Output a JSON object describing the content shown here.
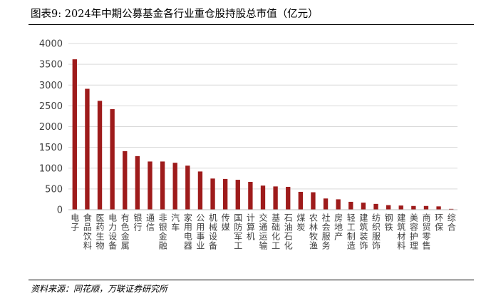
{
  "header": {
    "title": "图表9:  2024年中期公募基金各行业重仓股持股总市值（亿元）"
  },
  "footer": {
    "source": "资料来源：同花顺，万联证券研究所"
  },
  "chart_data": {
    "type": "bar",
    "title": "2024年中期公募基金各行业重仓股持股总市值（亿元）",
    "xlabel": "",
    "ylabel": "",
    "ylim": [
      0,
      4000
    ],
    "yticks": [
      0,
      500,
      1000,
      1500,
      2000,
      2500,
      3000,
      3500,
      4000
    ],
    "grid": true,
    "legend": "none",
    "bar_color": "#9e1b1b",
    "grid_color": "#d9d9d9",
    "categories": [
      "电子",
      "食品饮料",
      "医药生物",
      "电力设备",
      "有色金属",
      "银行",
      "通信",
      "非银金融",
      "汽车",
      "家用电器",
      "公用事业",
      "机械设备",
      "传媒",
      "国防军工",
      "计算机",
      "交通运输",
      "基础化工",
      "石油石化",
      "煤炭",
      "农林牧渔",
      "社会服务",
      "房地产",
      "轻工制造",
      "建筑装饰",
      "纺织服饰",
      "钢铁",
      "建筑材料",
      "美容护理",
      "商贸零售",
      "环保",
      "综合"
    ],
    "values": [
      3620,
      2910,
      2620,
      2420,
      1410,
      1290,
      1160,
      1160,
      1130,
      1060,
      920,
      750,
      740,
      720,
      670,
      580,
      560,
      550,
      430,
      420,
      270,
      250,
      190,
      170,
      140,
      110,
      100,
      90,
      90,
      80,
      20
    ]
  }
}
